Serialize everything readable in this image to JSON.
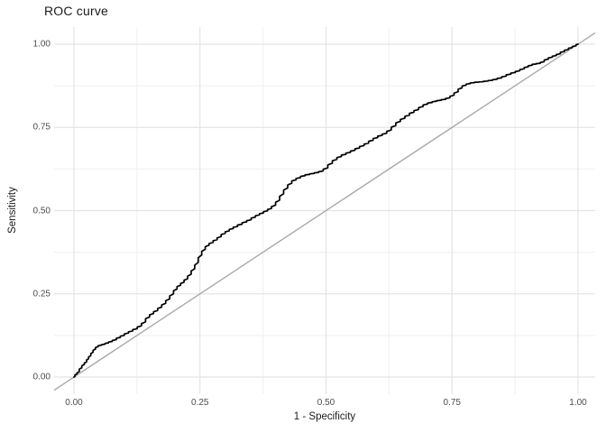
{
  "window": {
    "background": "#ffffff"
  },
  "chart": {
    "title": "ROC curve",
    "xlabel": "1 - Specificity",
    "ylabel": "Sensitivity"
  },
  "chart_data": {
    "type": "line",
    "title": "ROC curve",
    "xlabel": "1 - Specificity",
    "ylabel": "Sensitivity",
    "xlim": [
      0,
      1
    ],
    "ylim": [
      0,
      1
    ],
    "grid": {
      "show": true,
      "major_color": "#e4e4e4",
      "minor_color": "#efefef",
      "background": "#ffffff"
    },
    "theme": {
      "title_color": "#1a1a1a",
      "axis_title_color": "#1a1a1a",
      "tick_label_color": "#4d4d4d"
    },
    "legend": "none",
    "x_ticks": {
      "values": [
        0,
        0.25,
        0.5,
        0.75,
        1
      ],
      "labels": [
        "0.00",
        "0.25",
        "0.50",
        "0.75",
        "1.00"
      ]
    },
    "y_ticks": {
      "values": [
        0,
        0.25,
        0.5,
        0.75,
        1
      ],
      "labels": [
        "0.00",
        "0.25",
        "0.50",
        "0.75",
        "1.00"
      ]
    },
    "minor_tick_values": [
      0.125,
      0.375,
      0.625,
      0.875
    ],
    "series": [
      {
        "name": "ROC curve",
        "kind": "empirical-step-curve",
        "color": "#000000",
        "width": 1.7,
        "points": [
          [
            0.0,
            0.0
          ],
          [
            0.004,
            0.008
          ],
          [
            0.008,
            0.014
          ],
          [
            0.013,
            0.026
          ],
          [
            0.018,
            0.036
          ],
          [
            0.023,
            0.044
          ],
          [
            0.027,
            0.053
          ],
          [
            0.031,
            0.062
          ],
          [
            0.036,
            0.073
          ],
          [
            0.04,
            0.082
          ],
          [
            0.045,
            0.09
          ],
          [
            0.051,
            0.095
          ],
          [
            0.058,
            0.098
          ],
          [
            0.065,
            0.102
          ],
          [
            0.072,
            0.106
          ],
          [
            0.08,
            0.111
          ],
          [
            0.088,
            0.118
          ],
          [
            0.096,
            0.124
          ],
          [
            0.104,
            0.131
          ],
          [
            0.112,
            0.137
          ],
          [
            0.121,
            0.144
          ],
          [
            0.13,
            0.152
          ],
          [
            0.138,
            0.163
          ],
          [
            0.146,
            0.178
          ],
          [
            0.154,
            0.189
          ],
          [
            0.162,
            0.198
          ],
          [
            0.17,
            0.208
          ],
          [
            0.178,
            0.219
          ],
          [
            0.186,
            0.232
          ],
          [
            0.194,
            0.247
          ],
          [
            0.201,
            0.262
          ],
          [
            0.208,
            0.274
          ],
          [
            0.215,
            0.283
          ],
          [
            0.222,
            0.293
          ],
          [
            0.229,
            0.306
          ],
          [
            0.236,
            0.322
          ],
          [
            0.243,
            0.34
          ],
          [
            0.25,
            0.363
          ],
          [
            0.257,
            0.381
          ],
          [
            0.264,
            0.394
          ],
          [
            0.272,
            0.403
          ],
          [
            0.28,
            0.411
          ],
          [
            0.288,
            0.42
          ],
          [
            0.296,
            0.43
          ],
          [
            0.304,
            0.438
          ],
          [
            0.312,
            0.445
          ],
          [
            0.32,
            0.451
          ],
          [
            0.329,
            0.458
          ],
          [
            0.338,
            0.465
          ],
          [
            0.347,
            0.471
          ],
          [
            0.356,
            0.479
          ],
          [
            0.364,
            0.486
          ],
          [
            0.372,
            0.492
          ],
          [
            0.38,
            0.498
          ],
          [
            0.388,
            0.505
          ],
          [
            0.396,
            0.514
          ],
          [
            0.404,
            0.528
          ],
          [
            0.412,
            0.547
          ],
          [
            0.42,
            0.565
          ],
          [
            0.428,
            0.58
          ],
          [
            0.436,
            0.591
          ],
          [
            0.445,
            0.598
          ],
          [
            0.454,
            0.604
          ],
          [
            0.463,
            0.608
          ],
          [
            0.472,
            0.611
          ],
          [
            0.481,
            0.614
          ],
          [
            0.49,
            0.618
          ],
          [
            0.499,
            0.626
          ],
          [
            0.508,
            0.64
          ],
          [
            0.517,
            0.652
          ],
          [
            0.526,
            0.661
          ],
          [
            0.535,
            0.668
          ],
          [
            0.544,
            0.674
          ],
          [
            0.553,
            0.68
          ],
          [
            0.562,
            0.687
          ],
          [
            0.571,
            0.694
          ],
          [
            0.58,
            0.701
          ],
          [
            0.589,
            0.71
          ],
          [
            0.598,
            0.718
          ],
          [
            0.607,
            0.725
          ],
          [
            0.616,
            0.731
          ],
          [
            0.625,
            0.74
          ],
          [
            0.634,
            0.753
          ],
          [
            0.643,
            0.766
          ],
          [
            0.652,
            0.776
          ],
          [
            0.661,
            0.785
          ],
          [
            0.67,
            0.794
          ],
          [
            0.679,
            0.802
          ],
          [
            0.688,
            0.811
          ],
          [
            0.697,
            0.819
          ],
          [
            0.706,
            0.824
          ],
          [
            0.715,
            0.828
          ],
          [
            0.724,
            0.831
          ],
          [
            0.733,
            0.834
          ],
          [
            0.742,
            0.838
          ],
          [
            0.75,
            0.845
          ],
          [
            0.758,
            0.855
          ],
          [
            0.766,
            0.867
          ],
          [
            0.774,
            0.876
          ],
          [
            0.782,
            0.881
          ],
          [
            0.79,
            0.884
          ],
          [
            0.799,
            0.886
          ],
          [
            0.808,
            0.887
          ],
          [
            0.817,
            0.889
          ],
          [
            0.826,
            0.891
          ],
          [
            0.835,
            0.894
          ],
          [
            0.844,
            0.898
          ],
          [
            0.853,
            0.903
          ],
          [
            0.862,
            0.909
          ],
          [
            0.871,
            0.914
          ],
          [
            0.88,
            0.919
          ],
          [
            0.889,
            0.925
          ],
          [
            0.897,
            0.931
          ],
          [
            0.905,
            0.936
          ],
          [
            0.913,
            0.94
          ],
          [
            0.921,
            0.942
          ],
          [
            0.929,
            0.946
          ],
          [
            0.937,
            0.954
          ],
          [
            0.945,
            0.96
          ],
          [
            0.953,
            0.965
          ],
          [
            0.961,
            0.97
          ],
          [
            0.969,
            0.977
          ],
          [
            0.977,
            0.983
          ],
          [
            0.985,
            0.989
          ],
          [
            0.992,
            0.994
          ],
          [
            1.0,
            1.0
          ]
        ]
      },
      {
        "name": "chance diagonal",
        "kind": "reference-line",
        "color": "#a9a9a9",
        "width": 1.4,
        "from": [
          0,
          0
        ],
        "to": [
          1,
          1
        ]
      }
    ]
  }
}
